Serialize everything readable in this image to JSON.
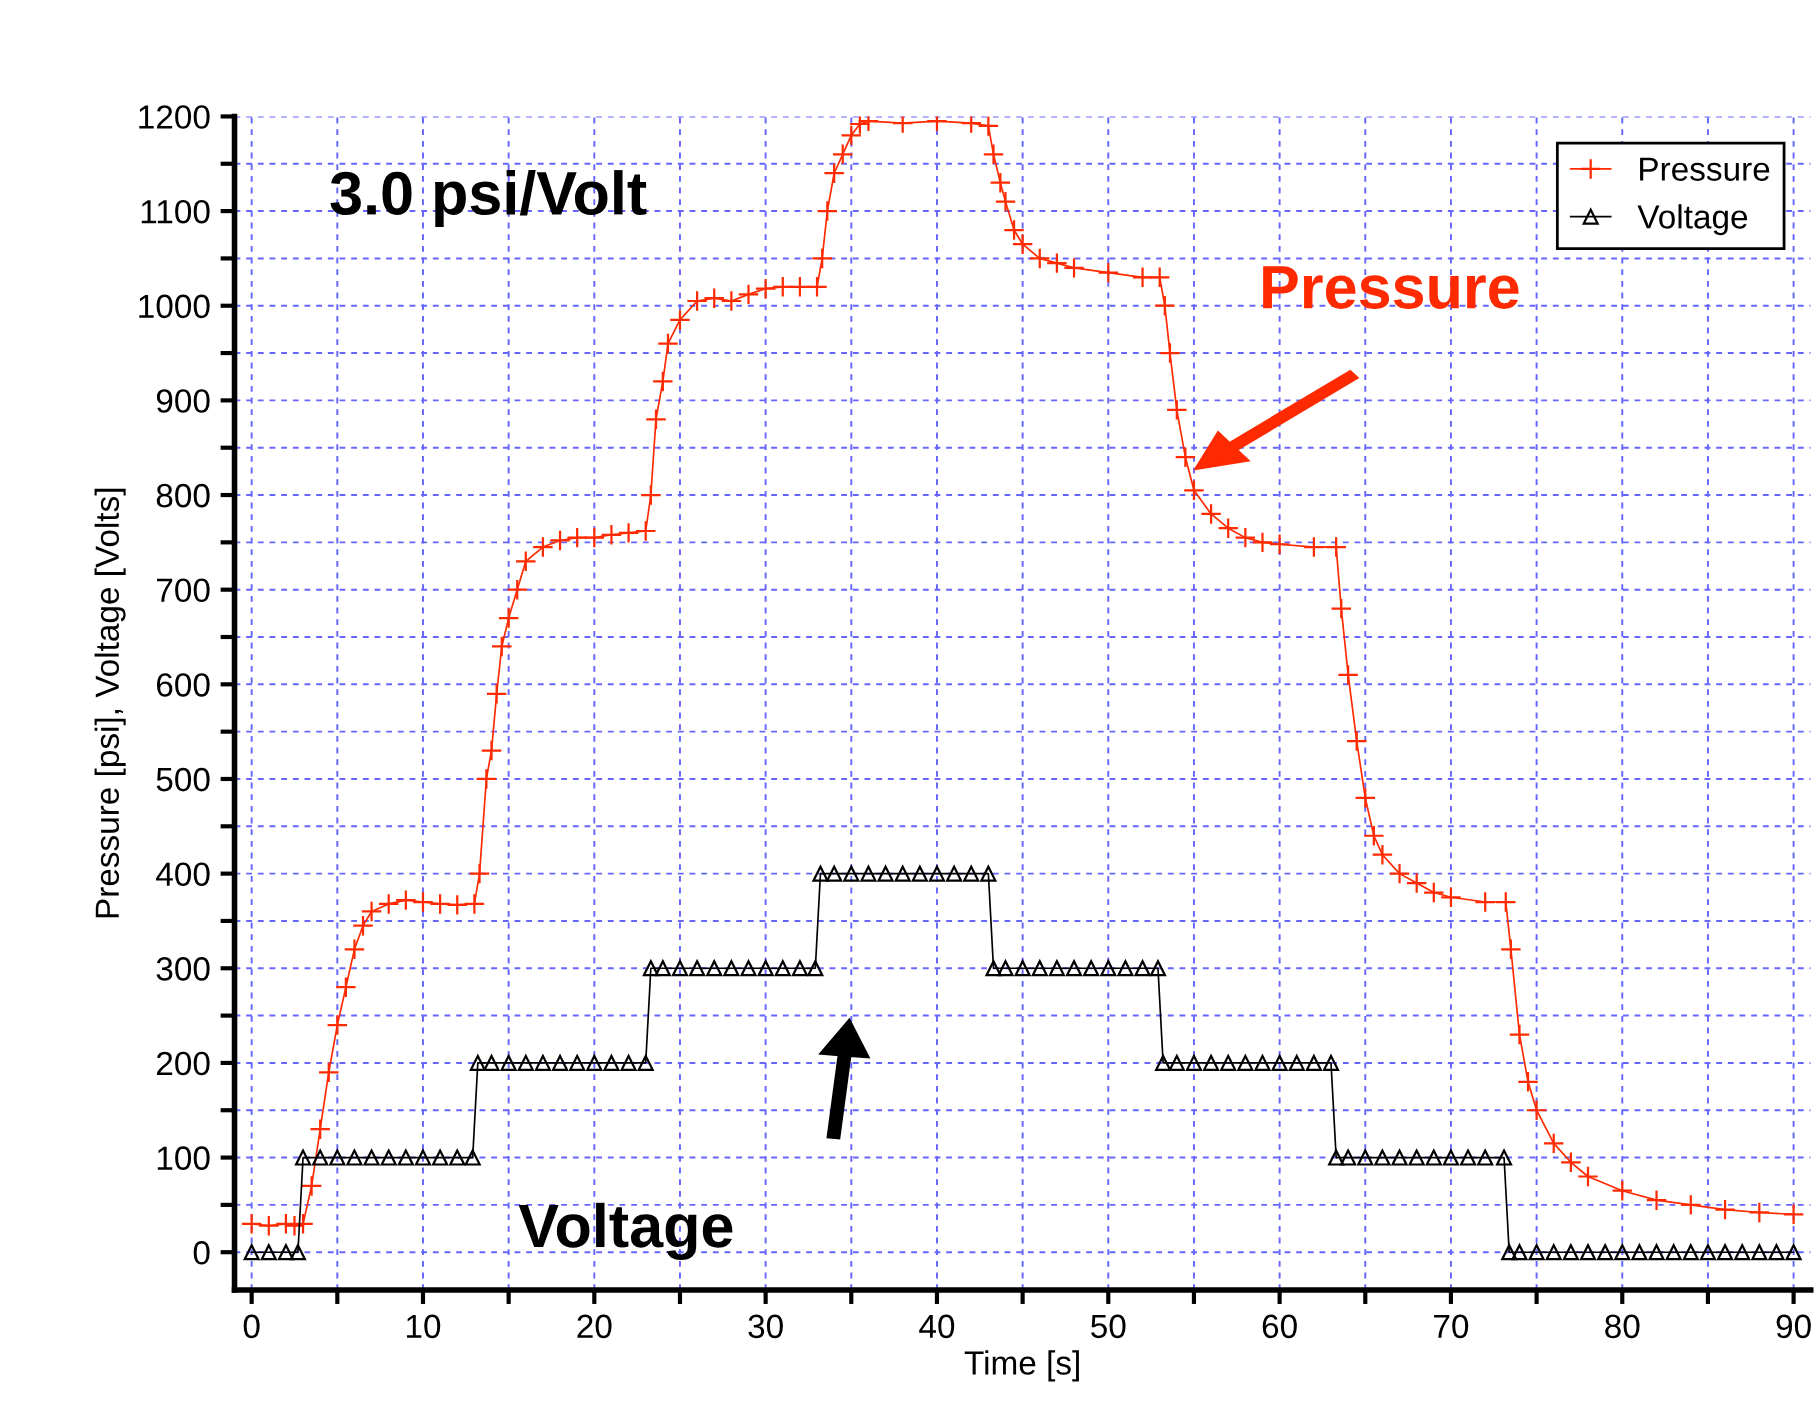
{
  "chart_data": {
    "type": "line",
    "xlabel": "Time [s]",
    "ylabel": "Pressure [psi], Voltage [Volts]",
    "xlim": [
      -1,
      91
    ],
    "ylim": [
      -40,
      1200
    ],
    "xticks": [
      0,
      {
        "value": 5,
        "label": null
      },
      10,
      {
        "value": 15,
        "label": null
      },
      20,
      {
        "value": 25,
        "label": null
      },
      30,
      {
        "value": 35,
        "label": null
      },
      40,
      {
        "value": 45,
        "label": null
      },
      50,
      {
        "value": 55,
        "label": null
      },
      60,
      {
        "value": 65,
        "label": null
      },
      70,
      {
        "value": 75,
        "label": null
      },
      80,
      {
        "value": 85,
        "label": null
      },
      90
    ],
    "yticks": [
      0,
      {
        "value": 50,
        "label": null
      },
      100,
      {
        "value": 150,
        "label": null
      },
      200,
      {
        "value": 250,
        "label": null
      },
      300,
      {
        "value": 350,
        "label": null
      },
      400,
      {
        "value": 450,
        "label": null
      },
      500,
      {
        "value": 550,
        "label": null
      },
      600,
      {
        "value": 650,
        "label": null
      },
      700,
      {
        "value": 750,
        "label": null
      },
      800,
      {
        "value": 850,
        "label": null
      },
      900,
      {
        "value": 950,
        "label": null
      },
      1000,
      {
        "value": 1050,
        "label": null
      },
      1100,
      {
        "value": 1150,
        "label": null
      },
      1200
    ],
    "grid": true,
    "legend": "top right",
    "line_style": "solid",
    "annotations": [
      "3.0 psi/Volt",
      "Pressure",
      "Voltage"
    ],
    "series": [
      {
        "name": "Pressure",
        "color": "#ff2a00",
        "marker": "cross",
        "x": [
          0,
          1,
          2,
          2.5,
          3,
          3.5,
          4,
          4.5,
          5,
          5.5,
          6,
          6.5,
          7,
          8,
          9,
          10,
          11,
          12,
          13,
          13.3,
          13.7,
          14,
          14.3,
          14.6,
          15,
          15.5,
          16,
          17,
          18,
          19,
          20,
          21,
          22,
          23,
          23.3,
          23.6,
          24,
          24.3,
          25,
          26,
          27,
          28,
          29,
          30,
          31,
          32,
          33,
          33.3,
          33.6,
          34,
          34.5,
          35,
          35.5,
          36,
          38,
          40,
          42,
          43,
          43.3,
          43.7,
          44,
          44.5,
          45,
          46,
          47,
          48,
          50,
          52,
          53,
          53.3,
          53.6,
          54,
          54.5,
          55,
          56,
          57,
          58,
          59,
          60,
          62,
          63.3,
          63.6,
          64,
          64.5,
          65,
          65.5,
          66,
          67,
          68,
          69,
          70,
          72,
          73.2,
          73.5,
          74,
          74.5,
          75,
          76,
          77,
          78,
          80,
          82,
          84,
          86,
          88,
          90
        ],
        "values": [
          30,
          28,
          30,
          28,
          30,
          70,
          130,
          190,
          240,
          280,
          320,
          345,
          360,
          368,
          372,
          370,
          368,
          367,
          368,
          400,
          500,
          530,
          590,
          640,
          670,
          700,
          730,
          745,
          752,
          755,
          755,
          758,
          760,
          762,
          800,
          880,
          920,
          960,
          985,
          1005,
          1008,
          1005,
          1012,
          1018,
          1020,
          1020,
          1020,
          1050,
          1100,
          1140,
          1160,
          1180,
          1192,
          1195,
          1193,
          1195,
          1193,
          1190,
          1160,
          1130,
          1110,
          1080,
          1065,
          1050,
          1045,
          1040,
          1035,
          1030,
          1030,
          1000,
          950,
          890,
          840,
          805,
          780,
          765,
          755,
          750,
          748,
          745,
          745,
          680,
          610,
          540,
          480,
          440,
          420,
          400,
          390,
          380,
          375,
          370,
          370,
          320,
          230,
          180,
          150,
          115,
          95,
          80,
          65,
          55,
          50,
          45,
          42,
          40
        ]
      },
      {
        "name": "Voltage",
        "color": "#000000",
        "marker": "triangle",
        "x": [
          0,
          1,
          2,
          2.7,
          3,
          4,
          5,
          6,
          7,
          8,
          9,
          10,
          11,
          12,
          12.9,
          13.2,
          14,
          15,
          16,
          17,
          18,
          19,
          20,
          21,
          22,
          23,
          23.3,
          24,
          25,
          26,
          27,
          28,
          29,
          30,
          31,
          32,
          32.9,
          33.2,
          34,
          35,
          36,
          37,
          38,
          39,
          40,
          41,
          42,
          43,
          43.3,
          44,
          45,
          46,
          47,
          48,
          49,
          50,
          51,
          52,
          52.9,
          53.2,
          54,
          55,
          56,
          57,
          58,
          59,
          60,
          61,
          62,
          63,
          63.3,
          64,
          65,
          66,
          67,
          68,
          69,
          70,
          71,
          72,
          73.1,
          73.4,
          74,
          75,
          76,
          77,
          78,
          79,
          80,
          81,
          82,
          83,
          84,
          85,
          86,
          87,
          88,
          89,
          90
        ],
        "values": [
          0,
          0,
          0,
          0,
          100,
          100,
          100,
          100,
          100,
          100,
          100,
          100,
          100,
          100,
          100,
          200,
          200,
          200,
          200,
          200,
          200,
          200,
          200,
          200,
          200,
          200,
          300,
          300,
          300,
          300,
          300,
          300,
          300,
          300,
          300,
          300,
          300,
          400,
          400,
          400,
          400,
          400,
          400,
          400,
          400,
          400,
          400,
          400,
          300,
          300,
          300,
          300,
          300,
          300,
          300,
          300,
          300,
          300,
          300,
          200,
          200,
          200,
          200,
          200,
          200,
          200,
          200,
          200,
          200,
          200,
          100,
          100,
          100,
          100,
          100,
          100,
          100,
          100,
          100,
          100,
          100,
          0,
          0,
          0,
          0,
          0,
          0,
          0,
          0,
          0,
          0,
          0,
          0,
          0,
          0,
          0,
          0,
          0,
          0
        ]
      }
    ]
  }
}
